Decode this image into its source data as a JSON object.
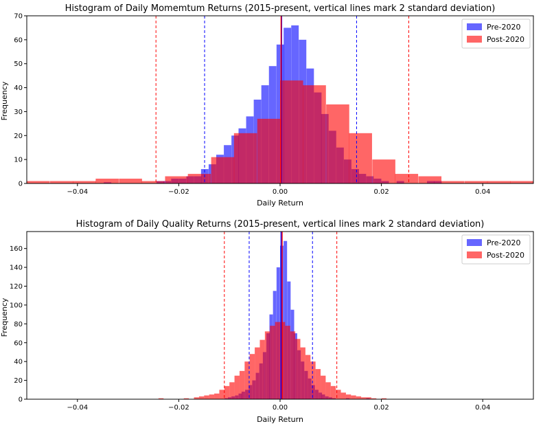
{
  "chart_data": [
    {
      "type": "histogram",
      "title": "Histogram of Daily Momemtum Returns (2015-present, vertical lines mark 2 standard deviation)",
      "xlabel": "Daily Return",
      "ylabel": "Frequency",
      "xlim": [
        -0.05,
        0.05
      ],
      "ylim": [
        0,
        70
      ],
      "xticks": [
        -0.04,
        -0.02,
        0.0,
        0.02,
        0.04
      ],
      "xtick_labels": [
        "−0.04",
        "−0.02",
        "0.00",
        "0.02",
        "0.04"
      ],
      "yticks": [
        0,
        10,
        20,
        30,
        40,
        50,
        60,
        70
      ],
      "legend_position": "top-right",
      "colors": {
        "pre": "#0000ff",
        "post": "#ff0000"
      },
      "series": [
        {
          "name": "Pre-2020",
          "bin_width": 0.00148,
          "bins": [
            [
              -0.0348,
              0.5
            ],
            [
              -0.0244,
              1
            ],
            [
              -0.023,
              1
            ],
            [
              -0.0215,
              2
            ],
            [
              -0.02,
              2
            ],
            [
              -0.0185,
              3
            ],
            [
              -0.017,
              3
            ],
            [
              -0.0156,
              6
            ],
            [
              -0.0141,
              8
            ],
            [
              -0.0126,
              12
            ],
            [
              -0.0111,
              16
            ],
            [
              -0.0096,
              20
            ],
            [
              -0.0082,
              23
            ],
            [
              -0.0067,
              28
            ],
            [
              -0.0052,
              35
            ],
            [
              -0.0037,
              41
            ],
            [
              -0.0022,
              49
            ],
            [
              -0.0007,
              58
            ],
            [
              0.0007,
              65
            ],
            [
              0.0022,
              66
            ],
            [
              0.0037,
              60
            ],
            [
              0.0052,
              48
            ],
            [
              0.0067,
              38
            ],
            [
              0.0081,
              29
            ],
            [
              0.0096,
              22
            ],
            [
              0.0111,
              15
            ],
            [
              0.0126,
              10
            ],
            [
              0.0141,
              6
            ],
            [
              0.0155,
              4
            ],
            [
              0.017,
              3
            ],
            [
              0.0185,
              2
            ],
            [
              0.02,
              1
            ],
            [
              0.023,
              1
            ],
            [
              0.029,
              1
            ],
            [
              0.0304,
              1
            ]
          ]
        },
        {
          "name": "Post-2020",
          "bin_width": 0.00455,
          "bins": [
            [
              -0.05,
              1
            ],
            [
              -0.0454,
              1
            ],
            [
              -0.0409,
              1
            ],
            [
              -0.0364,
              2
            ],
            [
              -0.0318,
              2
            ],
            [
              -0.0273,
              1
            ],
            [
              -0.0227,
              3
            ],
            [
              -0.0182,
              4
            ],
            [
              -0.0136,
              11
            ],
            [
              -0.0091,
              21
            ],
            [
              -0.0045,
              27
            ],
            [
              0.0,
              43
            ],
            [
              0.0045,
              41
            ],
            [
              0.0091,
              33
            ],
            [
              0.0136,
              21
            ],
            [
              0.0182,
              10
            ],
            [
              0.0227,
              4
            ],
            [
              0.0273,
              3
            ],
            [
              0.0318,
              1
            ],
            [
              0.0364,
              1
            ],
            [
              0.0409,
              1
            ],
            [
              0.0454,
              1
            ]
          ]
        }
      ],
      "vlines": [
        {
          "x": 0.0003,
          "color": "blue",
          "style": "solid"
        },
        {
          "x": 0.0002,
          "color": "red",
          "style": "solid"
        },
        {
          "x": -0.0149,
          "color": "blue",
          "style": "dashed"
        },
        {
          "x": 0.0151,
          "color": "blue",
          "style": "dashed"
        },
        {
          "x": -0.0245,
          "color": "red",
          "style": "dashed"
        },
        {
          "x": 0.0254,
          "color": "red",
          "style": "dashed"
        }
      ]
    },
    {
      "type": "histogram",
      "title": "Histogram of Daily Quality Returns (2015-present, vertical lines mark 2 standard deviation)",
      "xlabel": "Daily Return",
      "ylabel": "Frequency",
      "xlim": [
        -0.05,
        0.05
      ],
      "ylim": [
        0,
        178
      ],
      "xticks": [
        -0.04,
        -0.02,
        0.0,
        0.02,
        0.04
      ],
      "xtick_labels": [
        "−0.04",
        "−0.02",
        "0.00",
        "0.02",
        "0.04"
      ],
      "yticks": [
        0,
        20,
        40,
        60,
        80,
        100,
        120,
        140,
        160
      ],
      "legend_position": "top-right",
      "colors": {
        "pre": "#0000ff",
        "post": "#ff0000"
      },
      "series": [
        {
          "name": "Pre-2020",
          "bin_width": 0.00068,
          "bins": [
            [
              -0.011,
              1
            ],
            [
              -0.0103,
              2
            ],
            [
              -0.0096,
              3
            ],
            [
              -0.0089,
              4
            ],
            [
              -0.0082,
              6
            ],
            [
              -0.0076,
              8
            ],
            [
              -0.0069,
              10
            ],
            [
              -0.0062,
              15
            ],
            [
              -0.0055,
              20
            ],
            [
              -0.0048,
              28
            ],
            [
              -0.0041,
              38
            ],
            [
              -0.0034,
              50
            ],
            [
              -0.0027,
              70
            ],
            [
              -0.0021,
              90
            ],
            [
              -0.0014,
              115
            ],
            [
              -0.0007,
              140
            ],
            [
              0.0,
              163
            ],
            [
              0.0007,
              168
            ],
            [
              0.0014,
              125
            ],
            [
              0.0021,
              95
            ],
            [
              0.0027,
              70
            ],
            [
              0.0034,
              52
            ],
            [
              0.0041,
              40
            ],
            [
              0.0048,
              30
            ],
            [
              0.0055,
              22
            ],
            [
              0.0062,
              15
            ],
            [
              0.0069,
              10
            ],
            [
              0.0076,
              7
            ],
            [
              0.0082,
              5
            ],
            [
              0.0089,
              3
            ],
            [
              0.0096,
              2
            ],
            [
              0.0103,
              1
            ],
            [
              0.013,
              1
            ],
            [
              0.017,
              1
            ]
          ]
        },
        {
          "name": "Post-2020",
          "bin_width": 0.001,
          "bins": [
            [
              -0.024,
              1
            ],
            [
              -0.019,
              1
            ],
            [
              -0.017,
              2
            ],
            [
              -0.016,
              3
            ],
            [
              -0.015,
              4
            ],
            [
              -0.014,
              5
            ],
            [
              -0.013,
              6
            ],
            [
              -0.012,
              10
            ],
            [
              -0.011,
              14
            ],
            [
              -0.01,
              18
            ],
            [
              -0.009,
              25
            ],
            [
              -0.008,
              30
            ],
            [
              -0.007,
              40
            ],
            [
              -0.006,
              48
            ],
            [
              -0.005,
              55
            ],
            [
              -0.004,
              63
            ],
            [
              -0.003,
              72
            ],
            [
              -0.002,
              78
            ],
            [
              -0.001,
              82
            ],
            [
              0.0,
              82
            ],
            [
              0.001,
              78
            ],
            [
              0.002,
              72
            ],
            [
              0.003,
              64
            ],
            [
              0.004,
              55
            ],
            [
              0.005,
              47
            ],
            [
              0.006,
              40
            ],
            [
              0.007,
              32
            ],
            [
              0.008,
              25
            ],
            [
              0.009,
              18
            ],
            [
              0.01,
              14
            ],
            [
              0.011,
              10
            ],
            [
              0.012,
              7
            ],
            [
              0.013,
              5
            ],
            [
              0.014,
              4
            ],
            [
              0.015,
              3
            ],
            [
              0.016,
              2
            ],
            [
              0.017,
              2
            ],
            [
              0.018,
              1
            ],
            [
              0.02,
              1
            ]
          ]
        }
      ],
      "vlines": [
        {
          "x": 0.0002,
          "color": "blue",
          "style": "solid"
        },
        {
          "x": 0.0004,
          "color": "red",
          "style": "solid"
        },
        {
          "x": -0.0061,
          "color": "blue",
          "style": "dashed"
        },
        {
          "x": 0.0064,
          "color": "blue",
          "style": "dashed"
        },
        {
          "x": -0.011,
          "color": "red",
          "style": "dashed"
        },
        {
          "x": 0.0112,
          "color": "red",
          "style": "dashed"
        }
      ]
    }
  ]
}
